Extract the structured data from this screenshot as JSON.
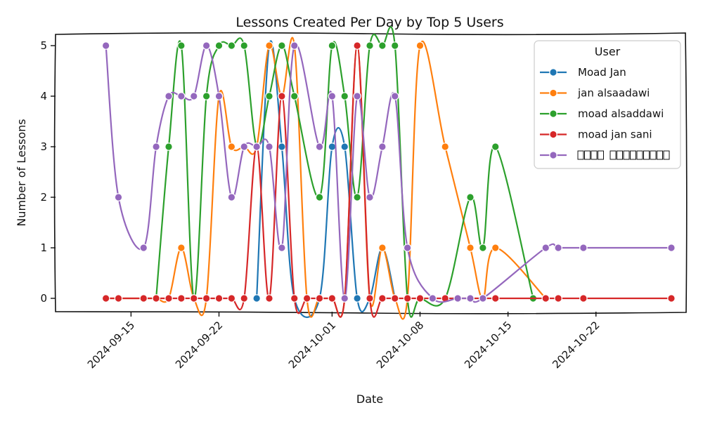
{
  "chart_data": {
    "type": "line",
    "title": "Lessons Created Per Day by Top 5 Users",
    "xlabel": "Date",
    "ylabel": "Number of Lessons",
    "x_ticks": [
      "2024-09-15",
      "2024-09-22",
      "2024-10-01",
      "2024-10-08",
      "2024-10-15",
      "2024-10-22"
    ],
    "y_ticks": [
      "0",
      "1",
      "2",
      "3",
      "4",
      "5"
    ],
    "ylim": [
      0,
      5
    ],
    "xlim": [
      "2024-09-10",
      "2024-10-28"
    ],
    "grid": false,
    "legend": {
      "title": "User",
      "placement": "top-right"
    },
    "series": [
      {
        "name": "Moad Jan",
        "color": "#1f77b4",
        "points": [
          [
            "2024-09-25",
            0
          ],
          [
            "2024-09-26",
            5
          ],
          [
            "2024-09-27",
            3
          ],
          [
            "2024-09-28",
            0
          ],
          [
            "2024-09-30",
            0
          ],
          [
            "2024-10-01",
            3
          ],
          [
            "2024-10-02",
            3
          ],
          [
            "2024-10-03",
            0
          ],
          [
            "2024-10-04",
            0
          ],
          [
            "2024-10-05",
            1
          ],
          [
            "2024-10-06",
            0
          ]
        ]
      },
      {
        "name": "jan alsaadawi",
        "color": "#ff7f0e",
        "points": [
          [
            "2024-09-13",
            0
          ],
          [
            "2024-09-14",
            0
          ],
          [
            "2024-09-16",
            0
          ],
          [
            "2024-09-17",
            0
          ],
          [
            "2024-09-18",
            0
          ],
          [
            "2024-09-19",
            1
          ],
          [
            "2024-09-20",
            0
          ],
          [
            "2024-09-21",
            0
          ],
          [
            "2024-09-22",
            4
          ],
          [
            "2024-09-23",
            3
          ],
          [
            "2024-09-24",
            3
          ],
          [
            "2024-09-25",
            3
          ],
          [
            "2024-09-26",
            5
          ],
          [
            "2024-09-27",
            4
          ],
          [
            "2024-09-28",
            5
          ],
          [
            "2024-09-29",
            0
          ],
          [
            "2024-09-30",
            0
          ],
          [
            "2024-10-01",
            0
          ],
          [
            "2024-10-02",
            0
          ],
          [
            "2024-10-03",
            5
          ],
          [
            "2024-10-04",
            0
          ],
          [
            "2024-10-05",
            1
          ],
          [
            "2024-10-06",
            0
          ],
          [
            "2024-10-07",
            0
          ],
          [
            "2024-10-08",
            5
          ],
          [
            "2024-10-10",
            3
          ],
          [
            "2024-10-12",
            1
          ],
          [
            "2024-10-13",
            0
          ],
          [
            "2024-10-14",
            1
          ],
          [
            "2024-10-18",
            0
          ]
        ]
      },
      {
        "name": "moad alsaddawi",
        "color": "#2ca02c",
        "points": [
          [
            "2024-09-17",
            0
          ],
          [
            "2024-09-18",
            3
          ],
          [
            "2024-09-19",
            5
          ],
          [
            "2024-09-20",
            0
          ],
          [
            "2024-09-21",
            4
          ],
          [
            "2024-09-22",
            5
          ],
          [
            "2024-09-23",
            5
          ],
          [
            "2024-09-24",
            5
          ],
          [
            "2024-09-25",
            3
          ],
          [
            "2024-09-26",
            4
          ],
          [
            "2024-09-27",
            5
          ],
          [
            "2024-09-28",
            4
          ],
          [
            "2024-09-30",
            2
          ],
          [
            "2024-10-01",
            5
          ],
          [
            "2024-10-02",
            4
          ],
          [
            "2024-10-03",
            2
          ],
          [
            "2024-10-04",
            5
          ],
          [
            "2024-10-05",
            5
          ],
          [
            "2024-10-06",
            5
          ],
          [
            "2024-10-07",
            0
          ],
          [
            "2024-10-08",
            0
          ],
          [
            "2024-10-10",
            0
          ],
          [
            "2024-10-12",
            2
          ],
          [
            "2024-10-13",
            1
          ],
          [
            "2024-10-14",
            3
          ],
          [
            "2024-10-17",
            0
          ]
        ]
      },
      {
        "name": "moad jan sani",
        "color": "#d62728",
        "points": [
          [
            "2024-09-13",
            0
          ],
          [
            "2024-09-14",
            0
          ],
          [
            "2024-09-16",
            0
          ],
          [
            "2024-09-17",
            0
          ],
          [
            "2024-09-18",
            0
          ],
          [
            "2024-09-19",
            0
          ],
          [
            "2024-09-20",
            0
          ],
          [
            "2024-09-21",
            0
          ],
          [
            "2024-09-22",
            0
          ],
          [
            "2024-09-23",
            0
          ],
          [
            "2024-09-24",
            0
          ],
          [
            "2024-09-25",
            3
          ],
          [
            "2024-09-26",
            0
          ],
          [
            "2024-09-27",
            4
          ],
          [
            "2024-09-28",
            0
          ],
          [
            "2024-09-29",
            0
          ],
          [
            "2024-09-30",
            0
          ],
          [
            "2024-10-01",
            0
          ],
          [
            "2024-10-02",
            0
          ],
          [
            "2024-10-03",
            5
          ],
          [
            "2024-10-04",
            0
          ],
          [
            "2024-10-05",
            0
          ],
          [
            "2024-10-06",
            0
          ],
          [
            "2024-10-07",
            0
          ],
          [
            "2024-10-08",
            0
          ],
          [
            "2024-10-10",
            0
          ],
          [
            "2024-10-12",
            0
          ],
          [
            "2024-10-13",
            0
          ],
          [
            "2024-10-14",
            0
          ],
          [
            "2024-10-18",
            0
          ],
          [
            "2024-10-19",
            0
          ],
          [
            "2024-10-21",
            0
          ],
          [
            "2024-10-28",
            0
          ]
        ]
      },
      {
        "name": "",
        "color": "#9467bd",
        "points": [
          [
            "2024-09-13",
            5
          ],
          [
            "2024-09-14",
            2
          ],
          [
            "2024-09-16",
            1
          ],
          [
            "2024-09-17",
            3
          ],
          [
            "2024-09-18",
            4
          ],
          [
            "2024-09-19",
            4
          ],
          [
            "2024-09-20",
            4
          ],
          [
            "2024-09-21",
            5
          ],
          [
            "2024-09-22",
            4
          ],
          [
            "2024-09-23",
            2
          ],
          [
            "2024-09-24",
            3
          ],
          [
            "2024-09-25",
            3
          ],
          [
            "2024-09-26",
            3
          ],
          [
            "2024-09-27",
            1
          ],
          [
            "2024-09-28",
            5
          ],
          [
            "2024-09-30",
            3
          ],
          [
            "2024-10-01",
            4
          ],
          [
            "2024-10-02",
            0
          ],
          [
            "2024-10-03",
            4
          ],
          [
            "2024-10-04",
            2
          ],
          [
            "2024-10-05",
            3
          ],
          [
            "2024-10-06",
            4
          ],
          [
            "2024-10-07",
            1
          ],
          [
            "2024-10-09",
            0
          ],
          [
            "2024-10-11",
            0
          ],
          [
            "2024-10-12",
            0
          ],
          [
            "2024-10-13",
            0
          ],
          [
            "2024-10-18",
            1
          ],
          [
            "2024-10-19",
            1
          ],
          [
            "2024-10-21",
            1
          ],
          [
            "2024-10-28",
            1
          ]
        ]
      }
    ]
  }
}
